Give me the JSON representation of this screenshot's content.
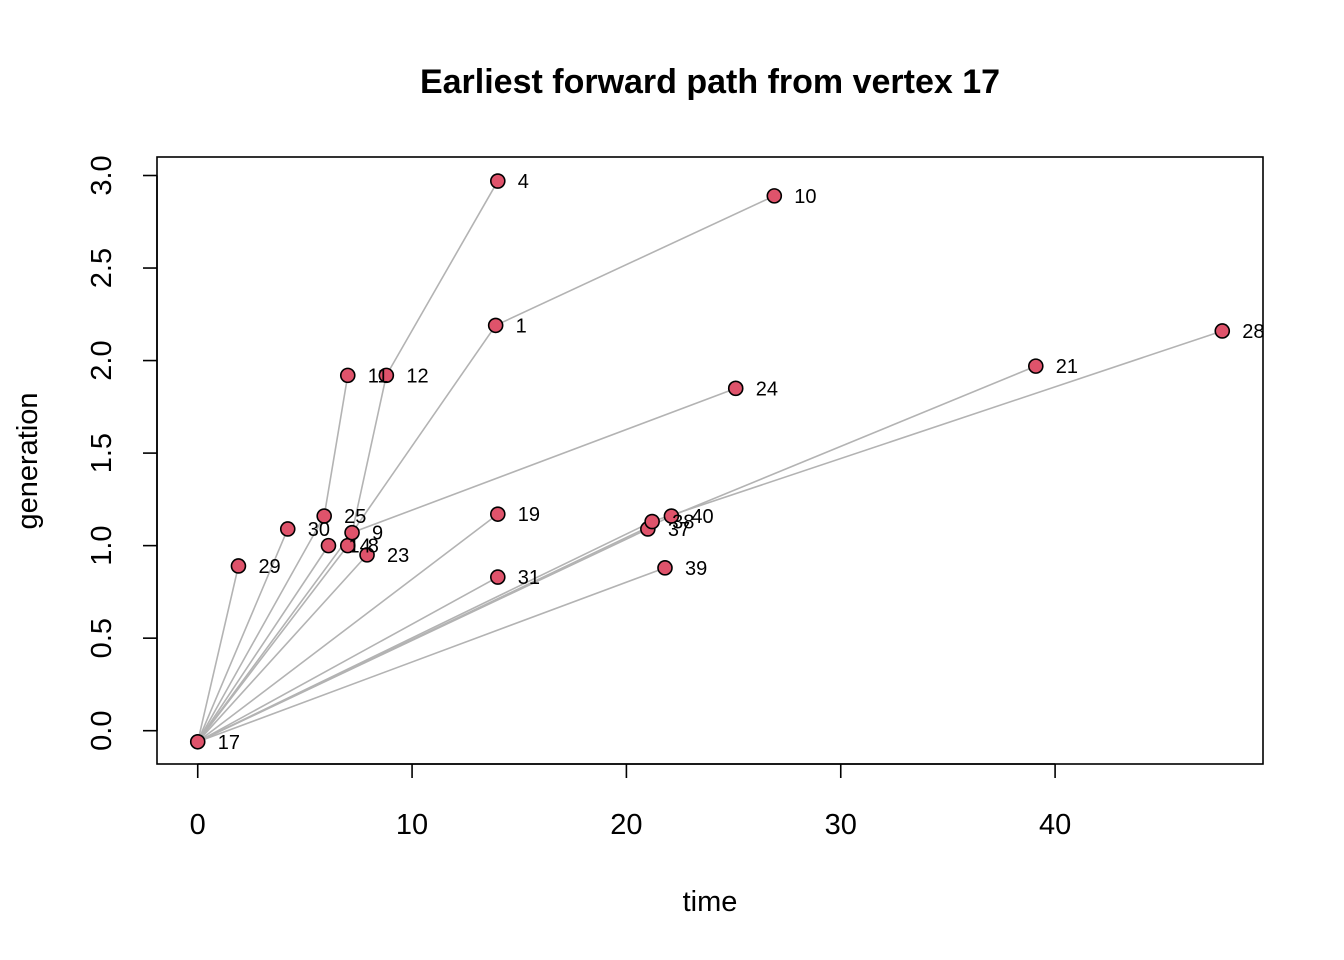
{
  "chart_data": {
    "type": "scatter",
    "title": "Earliest forward path from vertex 17",
    "xlabel": "time",
    "ylabel": "generation",
    "xlim": [
      -1.9,
      49.7
    ],
    "ylim": [
      -0.18,
      3.1
    ],
    "x_ticks": [
      0,
      10,
      20,
      30,
      40
    ],
    "y_ticks": [
      0.0,
      0.5,
      1.0,
      1.5,
      2.0,
      2.5,
      3.0
    ],
    "x_tick_labels": [
      "0",
      "10",
      "20",
      "30",
      "40"
    ],
    "y_tick_labels": [
      "0.0",
      "0.5",
      "1.0",
      "1.5",
      "2.0",
      "2.5",
      "3.0"
    ],
    "grid": false,
    "point_color": "#DF536B",
    "edge_color": "#B3B3B3",
    "nodes": [
      {
        "label": "17",
        "time": 0.0,
        "generation": -0.06
      },
      {
        "label": "29",
        "time": 1.9,
        "generation": 0.89
      },
      {
        "label": "30",
        "time": 4.2,
        "generation": 1.09
      },
      {
        "label": "25",
        "time": 5.9,
        "generation": 1.16
      },
      {
        "label": "14",
        "time": 6.1,
        "generation": 1.0
      },
      {
        "label": "8",
        "time": 7.0,
        "generation": 1.0
      },
      {
        "label": "9",
        "time": 7.2,
        "generation": 1.07
      },
      {
        "label": "11",
        "time": 7.0,
        "generation": 1.92
      },
      {
        "label": "12",
        "time": 8.8,
        "generation": 1.92
      },
      {
        "label": "23",
        "time": 7.9,
        "generation": 0.95
      },
      {
        "label": "4",
        "time": 14.0,
        "generation": 2.97
      },
      {
        "label": "1",
        "time": 13.9,
        "generation": 2.19
      },
      {
        "label": "19",
        "time": 14.0,
        "generation": 1.17
      },
      {
        "label": "31",
        "time": 14.0,
        "generation": 0.83
      },
      {
        "label": "37",
        "time": 21.0,
        "generation": 1.09
      },
      {
        "label": "38",
        "time": 21.2,
        "generation": 1.13
      },
      {
        "label": "40",
        "time": 22.1,
        "generation": 1.16
      },
      {
        "label": "39",
        "time": 21.8,
        "generation": 0.88
      },
      {
        "label": "24",
        "time": 25.1,
        "generation": 1.85
      },
      {
        "label": "10",
        "time": 26.9,
        "generation": 2.89
      },
      {
        "label": "21",
        "time": 39.1,
        "generation": 1.97
      },
      {
        "label": "28",
        "time": 47.8,
        "generation": 2.16
      }
    ],
    "edges": [
      {
        "from": "17",
        "to": "29"
      },
      {
        "from": "17",
        "to": "30"
      },
      {
        "from": "17",
        "to": "25"
      },
      {
        "from": "17",
        "to": "14"
      },
      {
        "from": "17",
        "to": "8"
      },
      {
        "from": "17",
        "to": "9"
      },
      {
        "from": "17",
        "to": "23"
      },
      {
        "from": "17",
        "to": "19"
      },
      {
        "from": "17",
        "to": "31"
      },
      {
        "from": "17",
        "to": "37"
      },
      {
        "from": "17",
        "to": "38"
      },
      {
        "from": "17",
        "to": "40"
      },
      {
        "from": "17",
        "to": "39"
      },
      {
        "from": "25",
        "to": "11"
      },
      {
        "from": "9",
        "to": "12"
      },
      {
        "from": "9",
        "to": "1"
      },
      {
        "from": "9",
        "to": "24"
      },
      {
        "from": "12",
        "to": "4"
      },
      {
        "from": "1",
        "to": "10"
      },
      {
        "from": "40",
        "to": "21"
      },
      {
        "from": "38",
        "to": "28"
      }
    ]
  }
}
